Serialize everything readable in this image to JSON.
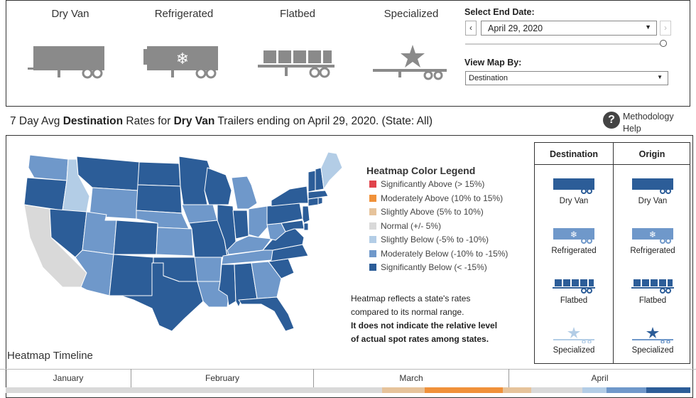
{
  "trailer_types": [
    {
      "id": "dry-van",
      "label": "Dry Van"
    },
    {
      "id": "refrigerated",
      "label": "Refrigerated"
    },
    {
      "id": "flatbed",
      "label": "Flatbed"
    },
    {
      "id": "specialized",
      "label": "Specialized"
    }
  ],
  "controls": {
    "end_date_label": "Select End Date:",
    "end_date_value": "April 29, 2020",
    "prev_icon": "chevron-left-icon",
    "next_icon": "chevron-right-icon",
    "slider_fraction": 1.0,
    "view_map_label": "View Map By:",
    "view_map_value": "Destination"
  },
  "headline": {
    "prefix": "7 Day Avg ",
    "mode": "Destination",
    "middle": " Rates for ",
    "trailer": "Dry Van",
    "suffix": " Trailers ending on April 29, 2020. (State: All)"
  },
  "help": {
    "icon": "question-circle-icon",
    "label_line1": "Methodology",
    "label_line2": "Help"
  },
  "legend": {
    "title": "Heatmap Color Legend",
    "items": [
      {
        "label": "Significantly Above (> 15%)",
        "color": "#e0434b"
      },
      {
        "label": "Moderately Above (10% to 15%)",
        "color": "#f0913a"
      },
      {
        "label": "Slightly Above (5% to 10%)",
        "color": "#e6c39b"
      },
      {
        "label": "Normal (+/- 5%)",
        "color": "#d9d9d9"
      },
      {
        "label": "Slightly Below (-5% to -10%)",
        "color": "#b3cde6"
      },
      {
        "label": "Moderately Below (-10% to -15%)",
        "color": "#6f98ca"
      },
      {
        "label": "Significantly Below (< -15%)",
        "color": "#2c5d98"
      }
    ],
    "note_line1": "Heatmap reflects a state's rates",
    "note_line2": "compared to its normal range.",
    "note_bold1": "It does not indicate the relative level",
    "note_bold2": "of actual spot rates among states."
  },
  "selector": {
    "col_destination": "Destination",
    "col_origin": "Origin",
    "rows": [
      {
        "label": "Dry Van"
      },
      {
        "label": "Refrigerated"
      },
      {
        "label": "Flatbed"
      },
      {
        "label": "Specialized"
      }
    ]
  },
  "timeline": {
    "title": "Heatmap Timeline",
    "months": [
      "January",
      "February",
      "March",
      "April"
    ]
  },
  "colors": {
    "sig_below": "#2c5d98",
    "mod_below": "#6f98ca",
    "slight_below": "#b3cde6",
    "normal": "#d9d9d9",
    "slight_above": "#e6c39b",
    "mod_above": "#f0913a",
    "trailer_gray": "#8a8a8a"
  }
}
